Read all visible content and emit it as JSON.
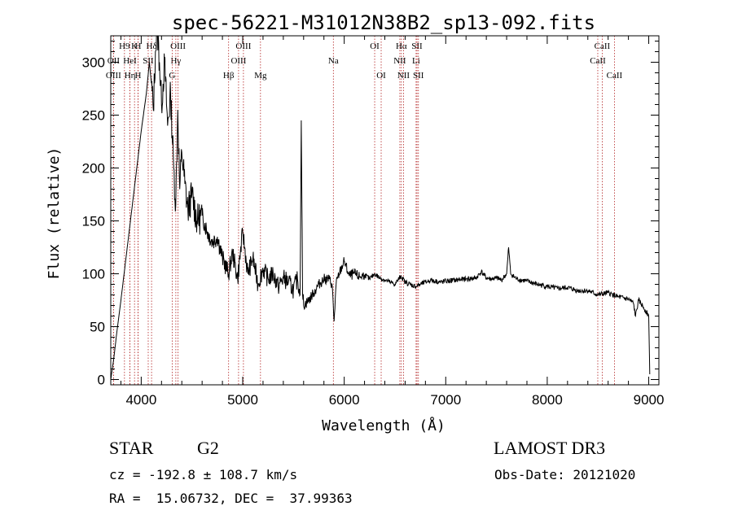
{
  "chart_data": {
    "type": "line",
    "title": "spec-56221-M31012N38B2_sp13-092.fits",
    "xlabel": "Wavelength (Å)",
    "ylabel": "Flux (relative)",
    "xlim": [
      3700,
      9100
    ],
    "ylim": [
      -5,
      325
    ],
    "x_ticks": [
      4000,
      5000,
      6000,
      7000,
      8000,
      9000
    ],
    "y_ticks": [
      0,
      50,
      100,
      150,
      200,
      250,
      300
    ],
    "line_color": "#000000",
    "marker_color": "#b22222",
    "spectrum_points": [
      [
        3700,
        0
      ],
      [
        3730,
        20
      ],
      [
        3760,
        45
      ],
      [
        3800,
        75
      ],
      [
        3850,
        115
      ],
      [
        3900,
        155
      ],
      [
        3950,
        195
      ],
      [
        4000,
        235
      ],
      [
        4050,
        270
      ],
      [
        4080,
        300
      ],
      [
        4100,
        280
      ],
      [
        4120,
        255
      ],
      [
        4140,
        310
      ],
      [
        4160,
        330
      ],
      [
        4180,
        300
      ],
      [
        4200,
        260
      ],
      [
        4230,
        300
      ],
      [
        4260,
        240
      ],
      [
        4290,
        270
      ],
      [
        4320,
        200
      ],
      [
        4340,
        165
      ],
      [
        4360,
        255
      ],
      [
        4380,
        180
      ],
      [
        4400,
        215
      ],
      [
        4430,
        185
      ],
      [
        4460,
        160
      ],
      [
        4500,
        175
      ],
      [
        4550,
        150
      ],
      [
        4600,
        155
      ],
      [
        4650,
        140
      ],
      [
        4700,
        130
      ],
      [
        4750,
        135
      ],
      [
        4800,
        115
      ],
      [
        4860,
        100
      ],
      [
        4900,
        120
      ],
      [
        4950,
        95
      ],
      [
        5000,
        140
      ],
      [
        5050,
        100
      ],
      [
        5100,
        115
      ],
      [
        5150,
        90
      ],
      [
        5200,
        105
      ],
      [
        5250,
        95
      ],
      [
        5300,
        100
      ],
      [
        5350,
        88
      ],
      [
        5400,
        96
      ],
      [
        5450,
        92
      ],
      [
        5500,
        85
      ],
      [
        5540,
        95
      ],
      [
        5565,
        80
      ],
      [
        5577,
        245
      ],
      [
        5590,
        80
      ],
      [
        5600,
        70
      ],
      [
        5650,
        75
      ],
      [
        5700,
        82
      ],
      [
        5750,
        90
      ],
      [
        5800,
        95
      ],
      [
        5850,
        95
      ],
      [
        5880,
        90
      ],
      [
        5900,
        55
      ],
      [
        5920,
        90
      ],
      [
        5950,
        100
      ],
      [
        6000,
        112
      ],
      [
        6050,
        98
      ],
      [
        6100,
        100
      ],
      [
        6150,
        97
      ],
      [
        6200,
        99
      ],
      [
        6250,
        95
      ],
      [
        6300,
        100
      ],
      [
        6350,
        96
      ],
      [
        6400,
        94
      ],
      [
        6450,
        92
      ],
      [
        6500,
        90
      ],
      [
        6560,
        98
      ],
      [
        6600,
        92
      ],
      [
        6650,
        90
      ],
      [
        6700,
        88
      ],
      [
        6750,
        90
      ],
      [
        6800,
        92
      ],
      [
        6850,
        94
      ],
      [
        6900,
        93
      ],
      [
        6950,
        92
      ],
      [
        7000,
        93
      ],
      [
        7100,
        94
      ],
      [
        7200,
        95
      ],
      [
        7300,
        96
      ],
      [
        7350,
        102
      ],
      [
        7400,
        96
      ],
      [
        7450,
        95
      ],
      [
        7500,
        96
      ],
      [
        7550,
        94
      ],
      [
        7600,
        100
      ],
      [
        7620,
        125
      ],
      [
        7640,
        100
      ],
      [
        7700,
        95
      ],
      [
        7800,
        93
      ],
      [
        7900,
        90
      ],
      [
        8000,
        88
      ],
      [
        8100,
        86
      ],
      [
        8200,
        87
      ],
      [
        8300,
        84
      ],
      [
        8400,
        84
      ],
      [
        8500,
        80
      ],
      [
        8600,
        82
      ],
      [
        8700,
        78
      ],
      [
        8800,
        76
      ],
      [
        8850,
        72
      ],
      [
        8870,
        60
      ],
      [
        8900,
        75
      ],
      [
        8950,
        68
      ],
      [
        9000,
        60
      ],
      [
        9010,
        5
      ]
    ],
    "line_markers": [
      {
        "label": "H9",
        "wl": 3835,
        "row": 0
      },
      {
        "label": "K",
        "wl": 3934,
        "row": 0
      },
      {
        "label": "H",
        "wl": 3969,
        "row": 0
      },
      {
        "label": "Hδ",
        "wl": 4102,
        "row": 0
      },
      {
        "label": "OII",
        "wl": 3727,
        "row": 1
      },
      {
        "label": "HeI",
        "wl": 3889,
        "row": 1
      },
      {
        "label": "SII",
        "wl": 4069,
        "row": 1
      },
      {
        "label": "OIII",
        "wl": 3727,
        "row": 2
      },
      {
        "label": "Hη",
        "wl": 3889,
        "row": 2
      },
      {
        "label": "H",
        "wl": 3969,
        "row": 2
      },
      {
        "label": "Hγ",
        "wl": 4341,
        "row": 1
      },
      {
        "label": "G",
        "wl": 4305,
        "row": 2
      },
      {
        "label": "OIII",
        "wl": 4363,
        "row": 0
      },
      {
        "label": "Hβ",
        "wl": 4861,
        "row": 2
      },
      {
        "label": "OIII",
        "wl": 4959,
        "row": 1
      },
      {
        "label": "OIII",
        "wl": 5007,
        "row": 0
      },
      {
        "label": "Mg",
        "wl": 5175,
        "row": 2
      },
      {
        "label": "Na",
        "wl": 5893,
        "row": 1
      },
      {
        "label": "OI",
        "wl": 6300,
        "row": 0
      },
      {
        "label": "OI",
        "wl": 6364,
        "row": 2
      },
      {
        "label": "Hα",
        "wl": 6563,
        "row": 0
      },
      {
        "label": "NII",
        "wl": 6548,
        "row": 1
      },
      {
        "label": "NII",
        "wl": 6584,
        "row": 2
      },
      {
        "label": "SII",
        "wl": 6717,
        "row": 0
      },
      {
        "label": "Li",
        "wl": 6708,
        "row": 1
      },
      {
        "label": "SII",
        "wl": 6731,
        "row": 2
      },
      {
        "label": "CaII",
        "wl": 8498,
        "row": 1
      },
      {
        "label": "CaII",
        "wl": 8542,
        "row": 0
      },
      {
        "label": "CaII",
        "wl": 8662,
        "row": 2
      }
    ]
  },
  "info": {
    "object_class": "STAR",
    "object_subclass": "G2",
    "survey": "LAMOST DR3",
    "cz_line": "cz = -192.8 ± 108.7 km/s",
    "obs_date": "Obs-Date: 20121020",
    "radec_line": "RA =  15.06732, DEC =  37.99363"
  }
}
